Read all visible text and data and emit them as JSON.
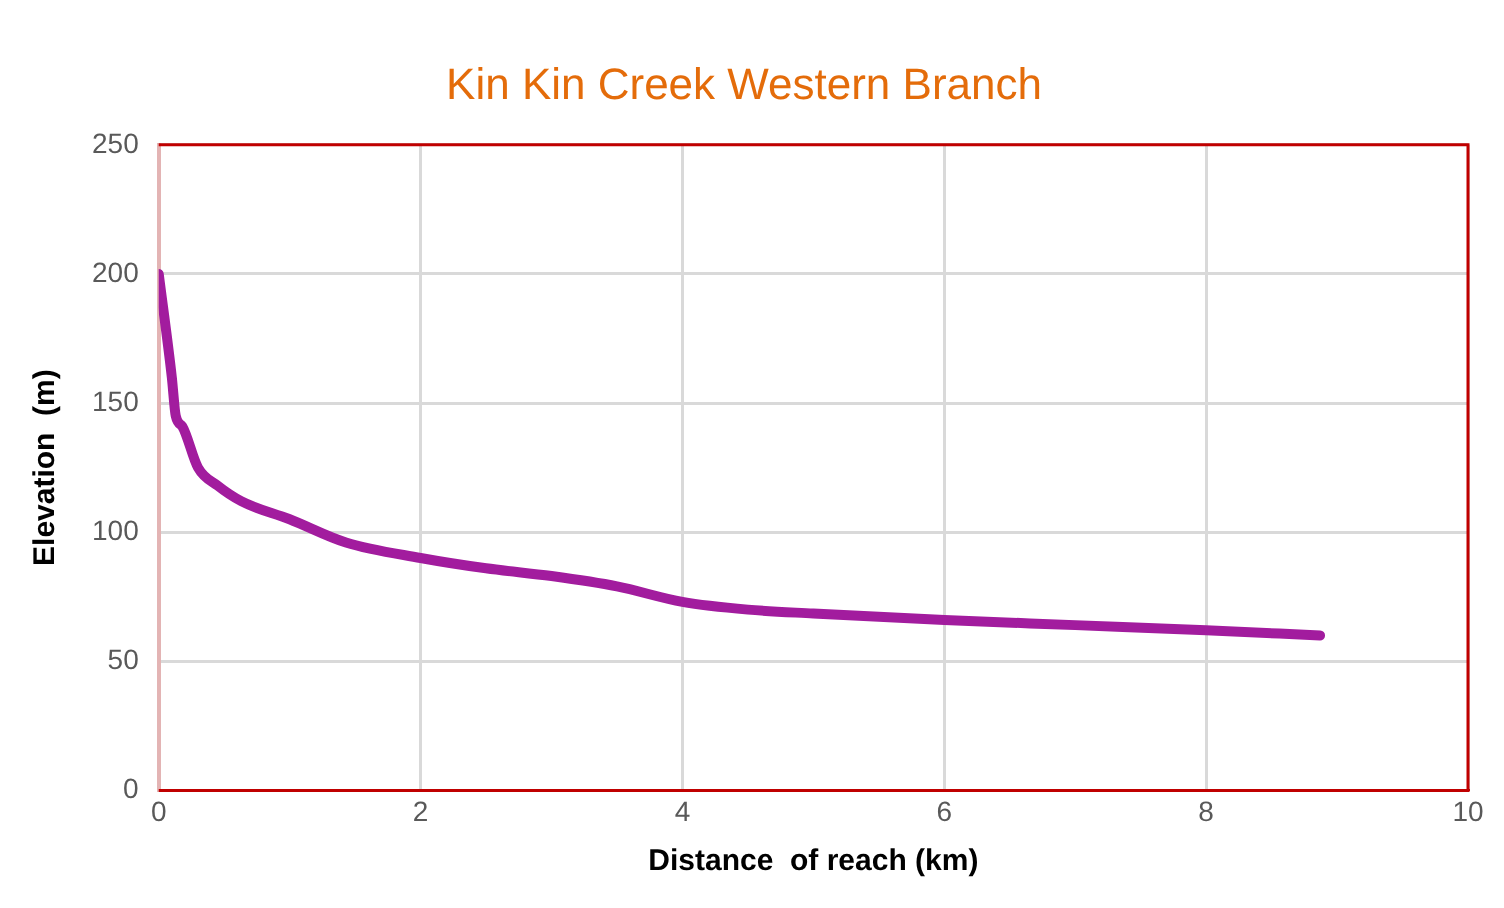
{
  "chart_data": {
    "type": "line",
    "title": "Kin Kin Creek Western Branch",
    "xlabel": "Distance  of reach (km)",
    "ylabel": "Elevation  (m)",
    "series": [
      {
        "color": "#a21c9e",
        "x": [
          0,
          0.1,
          0.13,
          0.18,
          0.3,
          0.45,
          0.63,
          1.0,
          1.43,
          2.0,
          2.5,
          3.0,
          3.5,
          4.0,
          4.5,
          5.0,
          6.0,
          7.0,
          8.0,
          8.87
        ],
        "values": [
          200,
          160,
          145,
          141,
          125,
          118,
          112,
          105,
          96,
          90,
          86,
          83,
          79,
          73,
          70,
          68.5,
          66,
          64,
          62,
          60
        ]
      }
    ],
    "xlim": [
      0,
      10
    ],
    "xticks": [
      0,
      2,
      4,
      6,
      8,
      10
    ],
    "ylim": [
      0,
      250
    ],
    "yticks": [
      0,
      50,
      100,
      150,
      200,
      250
    ],
    "grid": true,
    "legend": false,
    "marker": "none",
    "line_style": "solid"
  }
}
